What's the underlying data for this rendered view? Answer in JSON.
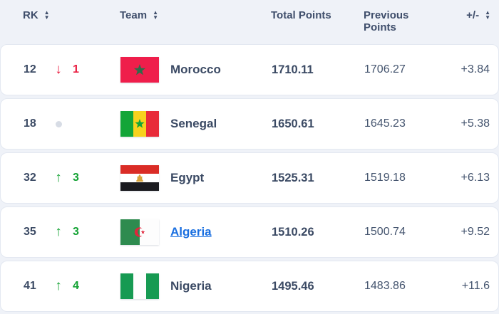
{
  "table": {
    "columns": [
      {
        "label": "RK",
        "sortable": true
      },
      {
        "label": "Team",
        "sortable": true
      },
      {
        "label": "Total Points",
        "sortable": false
      },
      {
        "label": "Previous Points",
        "sortable": false
      },
      {
        "label": "+/-",
        "sortable": true
      }
    ],
    "rows": [
      {
        "rank": "12",
        "change_dir": "down",
        "change": "1",
        "team": "Morocco",
        "flag": "morocco",
        "is_link": false,
        "total": "1710.11",
        "previous": "1706.27",
        "diff": "+3.84"
      },
      {
        "rank": "18",
        "change_dir": "none",
        "change": "",
        "team": "Senegal",
        "flag": "senegal",
        "is_link": false,
        "total": "1650.61",
        "previous": "1645.23",
        "diff": "+5.38"
      },
      {
        "rank": "32",
        "change_dir": "up",
        "change": "3",
        "team": "Egypt",
        "flag": "egypt",
        "is_link": false,
        "total": "1525.31",
        "previous": "1519.18",
        "diff": "+6.13"
      },
      {
        "rank": "35",
        "change_dir": "up",
        "change": "3",
        "team": "Algeria",
        "flag": "algeria",
        "is_link": true,
        "total": "1510.26",
        "previous": "1500.74",
        "diff": "+9.52"
      },
      {
        "rank": "41",
        "change_dir": "up",
        "change": "4",
        "team": "Nigeria",
        "flag": "nigeria",
        "is_link": false,
        "total": "1495.46",
        "previous": "1483.86",
        "diff": "+11.6"
      }
    ],
    "colors": {
      "up": "#13a233",
      "down": "#e91b3f",
      "link": "#1a6fe0",
      "header_text": "#3f4e6b",
      "row_background": "#ffffff",
      "page_background": "#eff2f8"
    }
  }
}
